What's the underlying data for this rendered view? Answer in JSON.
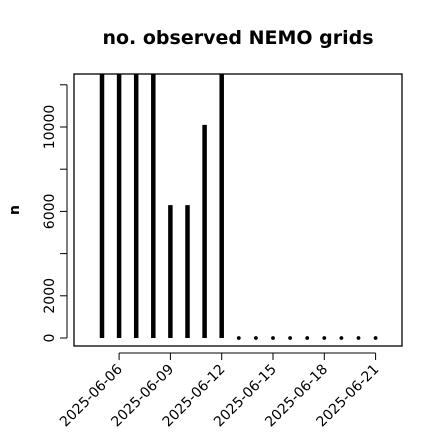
{
  "chart_data": {
    "type": "bar",
    "title": "no. observed NEMO grids",
    "xlabel": "",
    "ylabel": "n",
    "ylim": [
      0,
      12400
    ],
    "grid": false,
    "x_tick_labels": [
      "2025-06-06",
      "2025-06-09",
      "2025-06-12",
      "2025-06-15",
      "2025-06-18",
      "2025-06-21"
    ],
    "y_tick_labels": [
      "0",
      "2000",
      "6000",
      "10000"
    ],
    "y_ticks": [
      0,
      2000,
      4000,
      6000,
      8000,
      10000,
      12000
    ],
    "categories": [
      "2025-06-05",
      "2025-06-06",
      "2025-06-07",
      "2025-06-08",
      "2025-06-09",
      "2025-06-10",
      "2025-06-11",
      "2025-06-12",
      "2025-06-13",
      "2025-06-14",
      "2025-06-15",
      "2025-06-16",
      "2025-06-17",
      "2025-06-18",
      "2025-06-19",
      "2025-06-20",
      "2025-06-21"
    ],
    "values": [
      12600,
      12600,
      12600,
      12600,
      6300,
      6300,
      10100,
      12600,
      0,
      0,
      0,
      0,
      0,
      0,
      0,
      0,
      0
    ]
  }
}
